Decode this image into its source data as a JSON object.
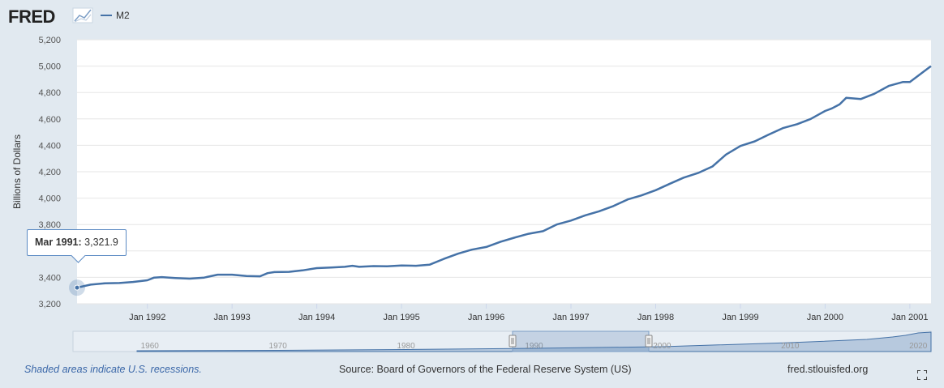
{
  "branding": {
    "logo_text": "FRED"
  },
  "legend": {
    "series_name": "M2"
  },
  "tooltip": {
    "date": "Mar 1991:",
    "value": "3,321.9"
  },
  "footer": {
    "recession_note": "Shaded areas indicate U.S. recessions.",
    "source": "Source: Board of Governors of the Federal Reserve System (US)",
    "site": "fred.stlouisfed.org"
  },
  "colors": {
    "line": "#4572a7",
    "background": "#e1e9f0",
    "plot": "#ffffff"
  },
  "icons": {
    "fullscreen": "fullscreen-icon",
    "logo_graph": "fred-graph-icon"
  },
  "navigator": {
    "labels": [
      "1960",
      "1970",
      "1980",
      "1990",
      "2000",
      "2010",
      "2020"
    ]
  },
  "chart_data": {
    "type": "line",
    "ylabel": "Billions of Dollars",
    "ylim": [
      3200,
      5200
    ],
    "yticks": [
      3200,
      3400,
      3600,
      3800,
      4000,
      4200,
      4400,
      4600,
      4800,
      5000,
      5200
    ],
    "ytick_labels": [
      "3,200",
      "3,400",
      "3,600",
      "3,800",
      "4,000",
      "4,200",
      "4,400",
      "4,600",
      "4,800",
      "5,000",
      "5,200"
    ],
    "xlim": [
      1991.17,
      2001.25
    ],
    "xticks": [
      1992,
      1993,
      1994,
      1995,
      1996,
      1997,
      1998,
      1999,
      2000,
      2001
    ],
    "xtick_labels": [
      "Jan 1992",
      "Jan 1993",
      "Jan 1994",
      "Jan 1995",
      "Jan 1996",
      "Jan 1997",
      "Jan 1998",
      "Jan 1999",
      "Jan 2000",
      "Jan 2001"
    ],
    "grid": true,
    "series": [
      {
        "name": "M2",
        "x": [
          1991.17,
          1991.33,
          1991.5,
          1991.67,
          1991.83,
          1992.0,
          1992.08,
          1992.17,
          1992.33,
          1992.5,
          1992.67,
          1992.83,
          1993.0,
          1993.17,
          1993.33,
          1993.42,
          1993.5,
          1993.67,
          1993.83,
          1994.0,
          1994.17,
          1994.33,
          1994.42,
          1994.5,
          1994.67,
          1994.83,
          1995.0,
          1995.17,
          1995.33,
          1995.5,
          1995.67,
          1995.83,
          1996.0,
          1996.17,
          1996.33,
          1996.5,
          1996.67,
          1996.83,
          1997.0,
          1997.17,
          1997.33,
          1997.5,
          1997.67,
          1997.83,
          1998.0,
          1998.17,
          1998.33,
          1998.5,
          1998.67,
          1998.83,
          1999.0,
          1999.17,
          1999.33,
          1999.5,
          1999.67,
          1999.83,
          2000.0,
          2000.08,
          2000.17,
          2000.25,
          2000.42,
          2000.58,
          2000.75,
          2000.92,
          2001.0,
          2001.25
        ],
        "values": [
          3321.9,
          3345,
          3355,
          3357,
          3365,
          3378,
          3398,
          3402,
          3395,
          3390,
          3398,
          3420,
          3420,
          3410,
          3408,
          3432,
          3440,
          3442,
          3453,
          3470,
          3474,
          3480,
          3488,
          3480,
          3485,
          3484,
          3490,
          3488,
          3496,
          3540,
          3580,
          3610,
          3630,
          3670,
          3700,
          3730,
          3750,
          3800,
          3830,
          3870,
          3900,
          3940,
          3990,
          4020,
          4060,
          4110,
          4155,
          4190,
          4240,
          4330,
          4395,
          4430,
          4480,
          4530,
          4560,
          4600,
          4660,
          4680,
          4710,
          4760,
          4750,
          4790,
          4850,
          4880,
          4880,
          5000
        ]
      }
    ]
  }
}
